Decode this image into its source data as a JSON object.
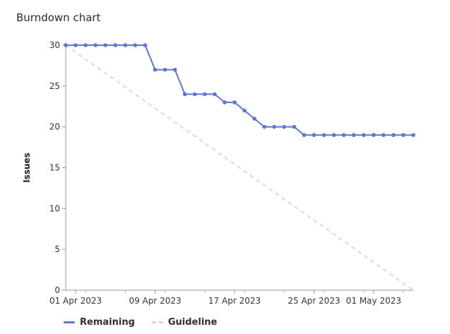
{
  "title": "Burndown chart",
  "chart_data": {
    "type": "line",
    "title": "Burndown chart",
    "ylabel": "Issues",
    "xlabel": "",
    "ylim": [
      0,
      30
    ],
    "yticks": [
      0,
      5,
      10,
      15,
      20,
      25,
      30
    ],
    "xlim": [
      "2023-03-31",
      "2023-05-06"
    ],
    "xticks": [
      "2023-04-01",
      "2023-04-09",
      "2023-04-17",
      "2023-04-25",
      "2023-05-01"
    ],
    "xtick_labels": [
      "01 Apr 2023",
      "09 Apr 2023",
      "17 Apr 2023",
      "25 Apr 2023",
      "01 May 2023"
    ],
    "grid": false,
    "legend_position": "bottom-left",
    "series": [
      {
        "name": "Remaining",
        "color": "#5b78d8",
        "style": "solid",
        "points": [
          [
            "2023-03-31",
            30
          ],
          [
            "2023-04-01",
            30
          ],
          [
            "2023-04-02",
            30
          ],
          [
            "2023-04-03",
            30
          ],
          [
            "2023-04-04",
            30
          ],
          [
            "2023-04-05",
            30
          ],
          [
            "2023-04-06",
            30
          ],
          [
            "2023-04-07",
            30
          ],
          [
            "2023-04-08",
            30
          ],
          [
            "2023-04-09",
            27
          ],
          [
            "2023-04-10",
            27
          ],
          [
            "2023-04-11",
            27
          ],
          [
            "2023-04-12",
            24
          ],
          [
            "2023-04-13",
            24
          ],
          [
            "2023-04-14",
            24
          ],
          [
            "2023-04-15",
            24
          ],
          [
            "2023-04-16",
            23
          ],
          [
            "2023-04-17",
            23
          ],
          [
            "2023-04-18",
            22
          ],
          [
            "2023-04-19",
            21
          ],
          [
            "2023-04-20",
            20
          ],
          [
            "2023-04-21",
            20
          ],
          [
            "2023-04-22",
            20
          ],
          [
            "2023-04-23",
            20
          ],
          [
            "2023-04-24",
            19
          ],
          [
            "2023-04-25",
            19
          ],
          [
            "2023-04-26",
            19
          ],
          [
            "2023-04-27",
            19
          ],
          [
            "2023-04-28",
            19
          ],
          [
            "2023-04-29",
            19
          ],
          [
            "2023-04-30",
            19
          ],
          [
            "2023-05-01",
            19
          ],
          [
            "2023-05-02",
            19
          ],
          [
            "2023-05-03",
            19
          ],
          [
            "2023-05-04",
            19
          ],
          [
            "2023-05-05",
            19
          ]
        ]
      },
      {
        "name": "Guideline",
        "color": "#d6d6d6",
        "style": "dashed",
        "points": [
          [
            "2023-03-31",
            30
          ],
          [
            "2023-05-05",
            0
          ]
        ]
      }
    ]
  }
}
